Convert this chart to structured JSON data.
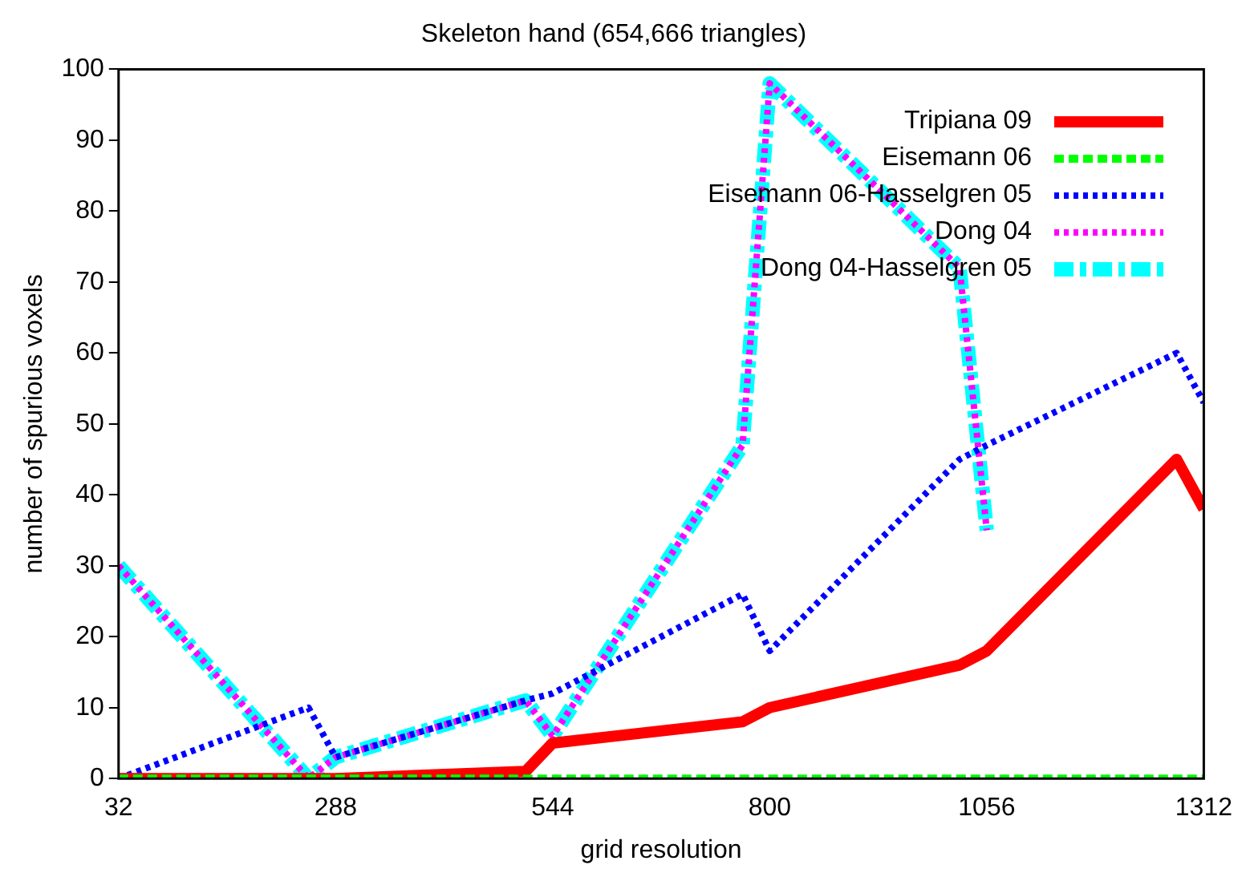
{
  "chart_data": {
    "type": "line",
    "title": "Skeleton hand (654,666 triangles)",
    "xlabel": "grid resolution",
    "ylabel": "number of spurious voxels",
    "x": [
      32,
      256,
      288,
      512,
      544,
      768,
      800,
      1024,
      1056,
      1280,
      1312
    ],
    "xlim": [
      32,
      1312
    ],
    "xticks": [
      32,
      288,
      544,
      800,
      1056,
      1312
    ],
    "ylim": [
      0,
      100
    ],
    "yticks": [
      0,
      10,
      20,
      30,
      40,
      50,
      60,
      70,
      80,
      90,
      100
    ],
    "grid": false,
    "legend": "top right",
    "marker": "none",
    "series": [
      {
        "name": "Tripiana 09",
        "color": "#ff0000",
        "line_style": "solid",
        "values": [
          0,
          0,
          0,
          1,
          5,
          8,
          10,
          16,
          18,
          45,
          38
        ]
      },
      {
        "name": "Eisemann 06",
        "color": "#00ff00",
        "line_style": "dashed",
        "values": [
          0,
          0,
          0,
          0,
          0,
          0,
          0,
          0,
          0,
          0,
          0
        ]
      },
      {
        "name": "Eisemann 06-Hasselgren 05",
        "color": "#0000ff",
        "line_style": "dotted",
        "values": [
          0,
          10,
          3,
          11,
          12,
          26,
          18,
          45,
          47,
          60,
          53
        ]
      },
      {
        "name": "Dong 04",
        "color": "#ff00ff",
        "line_style": "dotted",
        "values": [
          30,
          0,
          3,
          11,
          6,
          47,
          98,
          72,
          35,
          null,
          null
        ]
      },
      {
        "name": "Dong 04-Hasselgren 05",
        "color": "#00ffff",
        "line_style": "dashed",
        "values": [
          30,
          0,
          3,
          11,
          6,
          47,
          98,
          72,
          35,
          null,
          null
        ]
      }
    ]
  }
}
